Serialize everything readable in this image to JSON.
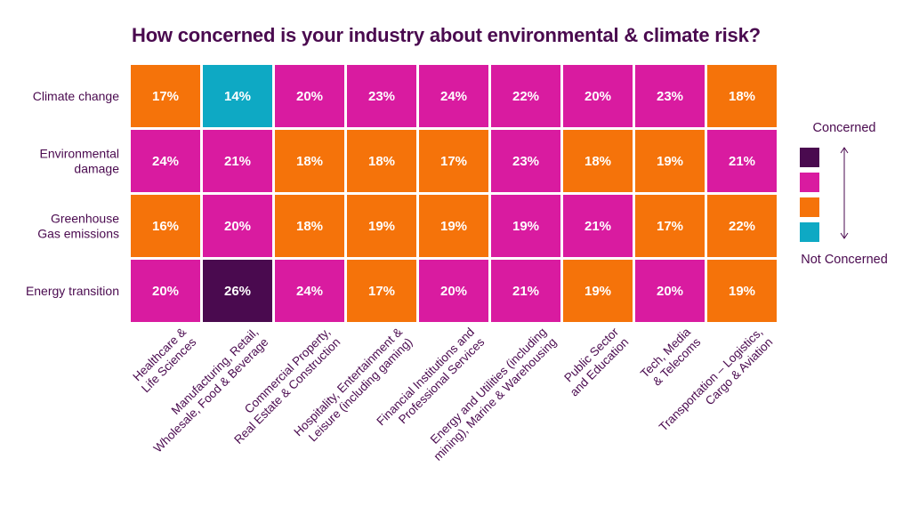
{
  "chart_data": {
    "type": "heatmap",
    "title": "How concerned is your industry about environmental & climate risk?",
    "rows": [
      {
        "label": [
          "Climate change"
        ]
      },
      {
        "label": [
          "Environmental",
          "damage"
        ]
      },
      {
        "label": [
          "Greenhouse",
          "Gas emissions"
        ]
      },
      {
        "label": [
          "Energy transition"
        ]
      }
    ],
    "columns": [
      {
        "label": [
          "Healthcare &",
          "Life Sciences"
        ]
      },
      {
        "label": [
          "Manufacturing, Retail,",
          "Wholesale, Food & Beverage"
        ]
      },
      {
        "label": [
          "Commercial Property,",
          "Real Estate & Construction"
        ]
      },
      {
        "label": [
          "Hospitality, Entertainment &",
          "Leisure (including gaming)"
        ]
      },
      {
        "label": [
          "Financial Institutions and",
          "Professional Services"
        ]
      },
      {
        "label": [
          "Energy and Utilities (including",
          "mining), Marine & Warehousing"
        ]
      },
      {
        "label": [
          "Public Sector",
          "and Education"
        ]
      },
      {
        "label": [
          "Tech, Media",
          "& Telecoms"
        ]
      },
      {
        "label": [
          "Transportation – Logistics,",
          "Cargo & Aviation"
        ]
      }
    ],
    "values": [
      [
        17,
        14,
        20,
        23,
        24,
        22,
        20,
        23,
        18
      ],
      [
        24,
        21,
        18,
        18,
        17,
        23,
        18,
        19,
        21
      ],
      [
        16,
        20,
        18,
        19,
        19,
        19,
        21,
        17,
        22
      ],
      [
        20,
        26,
        24,
        17,
        20,
        21,
        19,
        20,
        19
      ]
    ],
    "levels": [
      [
        2,
        3,
        1,
        1,
        1,
        1,
        1,
        1,
        2
      ],
      [
        1,
        1,
        2,
        2,
        2,
        1,
        2,
        2,
        1
      ],
      [
        2,
        1,
        2,
        2,
        2,
        1,
        1,
        2,
        2
      ],
      [
        1,
        0,
        1,
        2,
        1,
        1,
        2,
        1,
        2
      ]
    ],
    "value_suffix": "%",
    "legend": {
      "top_label": "Concerned",
      "bottom_label": "Not Concerned",
      "colors": [
        "#4a0a4f",
        "#d91ba0",
        "#f5730a",
        "#0ea9c4"
      ]
    }
  }
}
